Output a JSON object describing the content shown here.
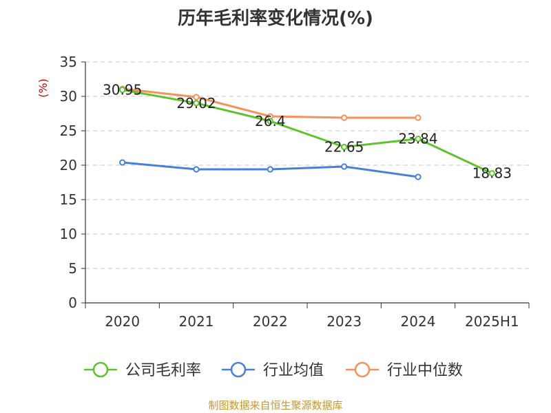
{
  "title": "历年毛利率变化情况(%)",
  "source": "制图数据来自恒生聚源数据库",
  "unit_label": "(%)",
  "chart_data": {
    "type": "line",
    "title": "历年毛利率变化情况(%)",
    "xlabel": "",
    "ylabel": "(%)",
    "categories": [
      "2020",
      "2021",
      "2022",
      "2023",
      "2024",
      "2025H1"
    ],
    "ylim": [
      0,
      35
    ],
    "yticks": [
      0,
      5,
      10,
      15,
      20,
      25,
      30,
      35
    ],
    "grid": true,
    "legend_position": "bottom",
    "series": [
      {
        "name": "公司毛利率",
        "color": "#5ec22d",
        "values": [
          30.95,
          29.02,
          26.4,
          22.65,
          23.84,
          18.83
        ],
        "labels": [
          "30.95",
          "29.02",
          "26.4",
          "22.65",
          "23.84",
          "18.83"
        ]
      },
      {
        "name": "行业均值",
        "color": "#4a7fd9",
        "values": [
          20.4,
          19.4,
          19.4,
          19.8,
          18.3,
          null
        ]
      },
      {
        "name": "行业中位数",
        "color": "#f5915a",
        "values": [
          31.1,
          29.9,
          27.1,
          26.9,
          26.9,
          null
        ]
      }
    ]
  }
}
